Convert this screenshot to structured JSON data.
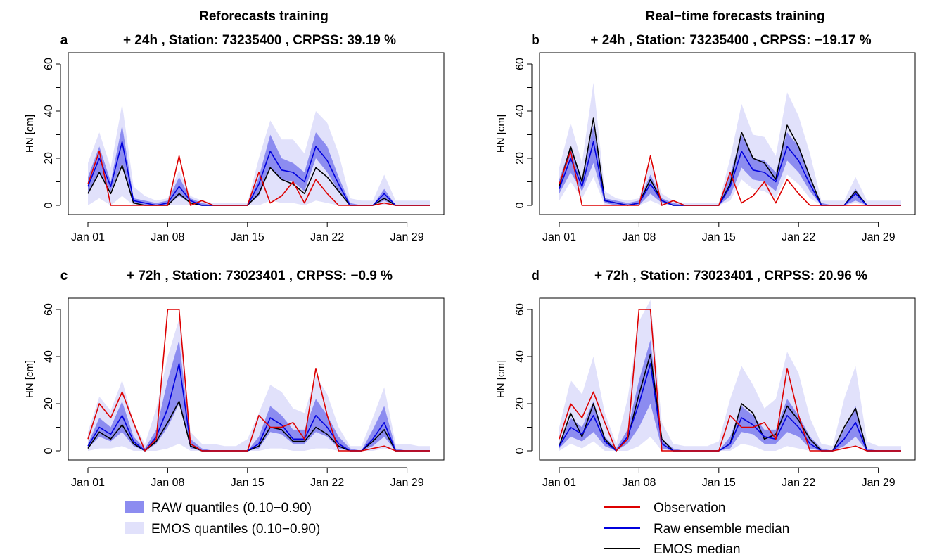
{
  "colors": {
    "observation": "#dd0000",
    "raw_median": "#0000dd",
    "emos_median": "#000000",
    "raw_band": "#8c8cf0",
    "emos_band": "#e1e1fb"
  },
  "column_titles": [
    "Reforecasts training",
    "Real−time forecasts training"
  ],
  "legend": {
    "raw_band": "RAW quantiles (0.10−0.90)",
    "emos_band": "EMOS quantiles (0.10−0.90)",
    "observation": "Observation",
    "raw_median": "Raw ensemble median",
    "emos_median": "EMOS median"
  },
  "chart_data": [
    {
      "type": "line",
      "panel_letter": "a",
      "title": "+ 24h , Station:  73235400 , CRPSS:  39.19 %",
      "ylabel": "HN [cm]",
      "ylim": [
        0,
        60
      ],
      "yticks": [
        "0",
        "20",
        "40",
        "60"
      ],
      "xlim": [
        1,
        31
      ],
      "xticks": [
        1,
        8,
        15,
        22,
        29
      ],
      "xticklabels": [
        "Jan 01",
        "Jan 08",
        "Jan 15",
        "Jan 22",
        "Jan 29"
      ],
      "x": [
        1,
        2,
        3,
        4,
        5,
        6,
        7,
        8,
        9,
        10,
        11,
        12,
        13,
        14,
        15,
        16,
        17,
        18,
        19,
        20,
        21,
        22,
        23,
        24,
        25,
        26,
        27,
        28,
        29,
        30,
        31
      ],
      "series": [
        {
          "name": "Observation",
          "values": [
            9,
            23,
            0,
            0,
            0,
            0,
            0,
            0,
            21,
            0,
            2,
            0,
            0,
            0,
            0,
            14,
            1,
            4,
            10,
            1,
            11,
            5,
            0,
            0,
            0,
            0,
            1,
            0,
            0,
            0,
            0
          ]
        },
        {
          "name": "Raw ensemble median",
          "values": [
            8,
            20,
            8,
            27,
            2,
            1,
            0,
            1,
            8,
            2,
            0,
            0,
            0,
            0,
            0,
            9,
            23,
            15,
            14,
            10,
            25,
            19,
            9,
            0,
            0,
            0,
            5,
            0,
            0,
            0,
            0
          ]
        },
        {
          "name": "EMOS median",
          "values": [
            5,
            14,
            5,
            17,
            1,
            0,
            0,
            0,
            5,
            1,
            0,
            0,
            0,
            0,
            0,
            5,
            16,
            11,
            9,
            5,
            16,
            12,
            6,
            0,
            0,
            0,
            3,
            0,
            0,
            0,
            0
          ]
        }
      ],
      "bands": [
        {
          "name": "EMOS quantiles (0.10−0.90)",
          "low": [
            0,
            3,
            0,
            4,
            0,
            0,
            0,
            0,
            0,
            0,
            0,
            0,
            0,
            0,
            0,
            0,
            2,
            1,
            1,
            0,
            2,
            1,
            0,
            0,
            0,
            0,
            0,
            0,
            0,
            0,
            0
          ],
          "high": [
            18,
            31,
            16,
            43,
            8,
            4,
            2,
            3,
            15,
            4,
            2,
            1,
            1,
            1,
            1,
            20,
            36,
            28,
            28,
            22,
            40,
            35,
            22,
            3,
            2,
            2,
            13,
            2,
            2,
            2,
            2
          ]
        },
        {
          "name": "RAW quantiles (0.10−0.90)",
          "low": [
            5,
            14,
            6,
            18,
            1,
            0,
            0,
            0,
            4,
            1,
            0,
            0,
            0,
            0,
            0,
            4,
            16,
            11,
            10,
            6,
            20,
            14,
            6,
            0,
            0,
            0,
            2,
            0,
            0,
            0,
            0
          ],
          "high": [
            12,
            25,
            10,
            34,
            3,
            2,
            1,
            2,
            12,
            3,
            1,
            0,
            0,
            0,
            0,
            12,
            30,
            20,
            18,
            14,
            31,
            25,
            12,
            1,
            0,
            0,
            7,
            0,
            0,
            0,
            0
          ]
        }
      ]
    },
    {
      "type": "line",
      "panel_letter": "b",
      "title": "+ 24h , Station:  73235400 , CRPSS:  −19.17 %",
      "ylabel": "HN [cm]",
      "ylim": [
        0,
        60
      ],
      "yticks": [
        "0",
        "20",
        "40",
        "60"
      ],
      "xlim": [
        1,
        31
      ],
      "xticks": [
        1,
        8,
        15,
        22,
        29
      ],
      "xticklabels": [
        "Jan 01",
        "Jan 08",
        "Jan 15",
        "Jan 22",
        "Jan 29"
      ],
      "x": [
        1,
        2,
        3,
        4,
        5,
        6,
        7,
        8,
        9,
        10,
        11,
        12,
        13,
        14,
        15,
        16,
        17,
        18,
        19,
        20,
        21,
        22,
        23,
        24,
        25,
        26,
        27,
        28,
        29,
        30,
        31
      ],
      "series": [
        {
          "name": "Observation",
          "values": [
            9,
            23,
            0,
            0,
            0,
            0,
            0,
            0,
            21,
            0,
            2,
            0,
            0,
            0,
            0,
            14,
            1,
            4,
            10,
            1,
            11,
            5,
            0,
            0,
            0,
            0,
            0,
            0,
            0,
            0,
            0
          ]
        },
        {
          "name": "Raw ensemble median",
          "values": [
            7,
            20,
            8,
            27,
            2,
            1,
            0,
            1,
            9,
            2,
            0,
            0,
            0,
            0,
            0,
            8,
            23,
            15,
            14,
            10,
            25,
            19,
            9,
            0,
            0,
            0,
            5,
            0,
            0,
            0,
            0
          ]
        },
        {
          "name": "EMOS median",
          "values": [
            8,
            25,
            10,
            37,
            2,
            1,
            0,
            1,
            11,
            2,
            0,
            0,
            0,
            0,
            0,
            9,
            31,
            20,
            18,
            11,
            34,
            25,
            12,
            0,
            0,
            0,
            6,
            0,
            0,
            0,
            0
          ]
        }
      ],
      "bands": [
        {
          "name": "EMOS quantiles (0.10−0.90)",
          "low": [
            2,
            10,
            3,
            12,
            0,
            0,
            0,
            0,
            2,
            0,
            0,
            0,
            0,
            0,
            0,
            2,
            11,
            7,
            6,
            3,
            13,
            9,
            3,
            0,
            0,
            0,
            1,
            0,
            0,
            0,
            0
          ],
          "high": [
            16,
            35,
            18,
            52,
            6,
            3,
            2,
            3,
            18,
            5,
            2,
            1,
            1,
            1,
            1,
            20,
            43,
            30,
            29,
            21,
            48,
            38,
            22,
            2,
            2,
            2,
            12,
            2,
            2,
            2,
            2
          ]
        },
        {
          "name": "RAW quantiles (0.10−0.90)",
          "low": [
            5,
            14,
            6,
            18,
            1,
            0,
            0,
            0,
            5,
            1,
            0,
            0,
            0,
            0,
            0,
            4,
            16,
            11,
            10,
            6,
            19,
            14,
            6,
            0,
            0,
            0,
            2,
            0,
            0,
            0,
            0
          ],
          "high": [
            11,
            25,
            11,
            34,
            3,
            2,
            1,
            2,
            13,
            3,
            1,
            0,
            0,
            0,
            0,
            13,
            30,
            20,
            19,
            14,
            31,
            25,
            12,
            1,
            0,
            0,
            7,
            0,
            0,
            0,
            0
          ]
        }
      ]
    },
    {
      "type": "line",
      "panel_letter": "c",
      "title": "+ 72h , Station:  73023401 , CRPSS:  −0.9 %",
      "ylabel": "HN [cm]",
      "ylim": [
        0,
        60
      ],
      "yticks": [
        "0",
        "20",
        "40",
        "60"
      ],
      "xlim": [
        1,
        31
      ],
      "xticks": [
        1,
        8,
        15,
        22,
        29
      ],
      "xticklabels": [
        "Jan 01",
        "Jan 08",
        "Jan 15",
        "Jan 22",
        "Jan 29"
      ],
      "x": [
        1,
        2,
        3,
        4,
        5,
        6,
        7,
        8,
        9,
        10,
        11,
        12,
        13,
        14,
        15,
        16,
        17,
        18,
        19,
        20,
        21,
        22,
        23,
        24,
        25,
        26,
        27,
        28,
        29,
        30,
        31
      ],
      "series": [
        {
          "name": "Observation",
          "values": [
            5,
            20,
            14,
            25,
            12,
            0,
            5,
            60,
            60,
            3,
            0,
            0,
            0,
            0,
            0,
            15,
            10,
            10,
            12,
            5,
            35,
            15,
            0,
            0,
            0,
            1,
            2,
            0,
            0,
            0,
            0
          ]
        },
        {
          "name": "Raw ensemble median",
          "values": [
            2,
            10,
            7,
            15,
            4,
            0,
            6,
            18,
            37,
            3,
            0,
            0,
            0,
            0,
            0,
            3,
            14,
            11,
            5,
            5,
            15,
            10,
            3,
            0,
            0,
            5,
            12,
            0,
            0,
            0,
            0
          ]
        },
        {
          "name": "EMOS median",
          "values": [
            1,
            8,
            5,
            11,
            3,
            0,
            4,
            12,
            21,
            2,
            0,
            0,
            0,
            0,
            0,
            2,
            10,
            9,
            4,
            4,
            10,
            7,
            2,
            0,
            0,
            4,
            9,
            0,
            0,
            0,
            0
          ]
        }
      ],
      "bands": [
        {
          "name": "EMOS quantiles (0.10−0.90)",
          "low": [
            0,
            1,
            1,
            2,
            0,
            0,
            0,
            1,
            3,
            0,
            0,
            0,
            0,
            0,
            0,
            0,
            1,
            1,
            0,
            0,
            1,
            1,
            0,
            0,
            0,
            0,
            1,
            0,
            0,
            0,
            0
          ],
          "high": [
            8,
            23,
            17,
            30,
            12,
            3,
            18,
            40,
            56,
            8,
            3,
            3,
            2,
            2,
            5,
            16,
            28,
            25,
            18,
            16,
            32,
            24,
            10,
            2,
            2,
            14,
            27,
            3,
            3,
            2,
            2
          ]
        },
        {
          "name": "RAW quantiles (0.10−0.90)",
          "low": [
            1,
            6,
            4,
            8,
            2,
            0,
            3,
            10,
            20,
            1,
            0,
            0,
            0,
            0,
            0,
            1,
            8,
            7,
            3,
            3,
            8,
            6,
            1,
            0,
            0,
            2,
            6,
            0,
            0,
            0,
            0
          ]
        },
        {
          "name": "RAW quantiles (0.10−0.90) high",
          "high": [
            3,
            14,
            10,
            21,
            6,
            1,
            9,
            30,
            47,
            5,
            1,
            0,
            0,
            0,
            0,
            6,
            19,
            15,
            9,
            9,
            22,
            15,
            6,
            1,
            0,
            9,
            19,
            1,
            0,
            0,
            0
          ]
        }
      ]
    },
    {
      "type": "line",
      "panel_letter": "d",
      "title": "+ 72h , Station:  73023401 , CRPSS:  20.96 %",
      "ylabel": "HN [cm]",
      "ylim": [
        0,
        60
      ],
      "yticks": [
        "0",
        "20",
        "40",
        "60"
      ],
      "xlim": [
        1,
        31
      ],
      "xticks": [
        1,
        8,
        15,
        22,
        29
      ],
      "xticklabels": [
        "Jan 01",
        "Jan 08",
        "Jan 15",
        "Jan 22",
        "Jan 29"
      ],
      "x": [
        1,
        2,
        3,
        4,
        5,
        6,
        7,
        8,
        9,
        10,
        11,
        12,
        13,
        14,
        15,
        16,
        17,
        18,
        19,
        20,
        21,
        22,
        23,
        24,
        25,
        26,
        27,
        28,
        29,
        30,
        31
      ],
      "series": [
        {
          "name": "Observation",
          "values": [
            5,
            20,
            14,
            25,
            12,
            0,
            5,
            60,
            60,
            0,
            0,
            0,
            0,
            0,
            0,
            15,
            10,
            10,
            12,
            5,
            35,
            15,
            0,
            0,
            0,
            1,
            2,
            0,
            0,
            0,
            0
          ]
        },
        {
          "name": "Raw ensemble median",
          "values": [
            2,
            10,
            7,
            15,
            4,
            0,
            6,
            20,
            37,
            3,
            0,
            0,
            0,
            0,
            0,
            3,
            14,
            11,
            6,
            5,
            15,
            10,
            3,
            0,
            0,
            5,
            12,
            0,
            0,
            0,
            0
          ]
        },
        {
          "name": "EMOS median",
          "values": [
            2,
            16,
            6,
            20,
            5,
            0,
            5,
            24,
            41,
            5,
            0,
            0,
            0,
            0,
            0,
            3,
            20,
            16,
            5,
            7,
            19,
            13,
            5,
            0,
            0,
            10,
            18,
            0,
            0,
            0,
            0
          ]
        }
      ],
      "bands": [
        {
          "name": "EMOS quantiles (0.10−0.90)",
          "low": [
            0,
            3,
            1,
            4,
            0,
            0,
            0,
            2,
            6,
            0,
            0,
            0,
            0,
            0,
            0,
            0,
            3,
            2,
            0,
            0,
            2,
            1,
            0,
            0,
            0,
            1,
            2,
            0,
            0,
            0,
            0
          ],
          "high": [
            10,
            30,
            24,
            40,
            16,
            3,
            22,
            55,
            64,
            12,
            3,
            2,
            2,
            2,
            4,
            22,
            36,
            28,
            18,
            22,
            42,
            33,
            14,
            3,
            2,
            22,
            36,
            4,
            2,
            2,
            2
          ]
        },
        {
          "name": "RAW quantiles (0.10−0.90)",
          "low": [
            1,
            6,
            4,
            8,
            2,
            0,
            3,
            10,
            20,
            1,
            0,
            0,
            0,
            0,
            0,
            1,
            8,
            7,
            3,
            3,
            8,
            6,
            1,
            0,
            0,
            2,
            6,
            0,
            0,
            0,
            0
          ]
        },
        {
          "name": "RAW quantiles (0.10−0.90) high",
          "high": [
            3,
            14,
            10,
            21,
            6,
            1,
            9,
            30,
            47,
            5,
            1,
            0,
            0,
            0,
            0,
            6,
            19,
            15,
            9,
            9,
            22,
            15,
            6,
            1,
            0,
            9,
            19,
            1,
            0,
            0,
            0
          ]
        }
      ]
    }
  ]
}
